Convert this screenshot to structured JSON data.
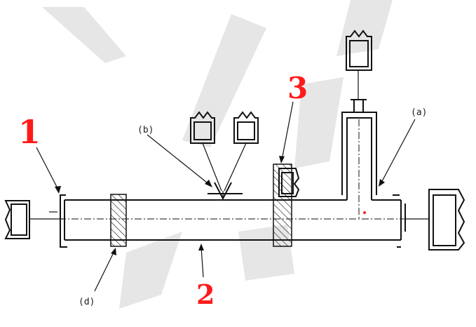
{
  "labels": {
    "num1": "1",
    "num2": "2",
    "num3": "3",
    "a": "(a)",
    "b": "(b)",
    "d": "(d)"
  },
  "colors": {
    "line": "#111111",
    "number_label": "#ff1a1a",
    "dot": "#ff2020",
    "watermark": "#e6e6e6"
  }
}
